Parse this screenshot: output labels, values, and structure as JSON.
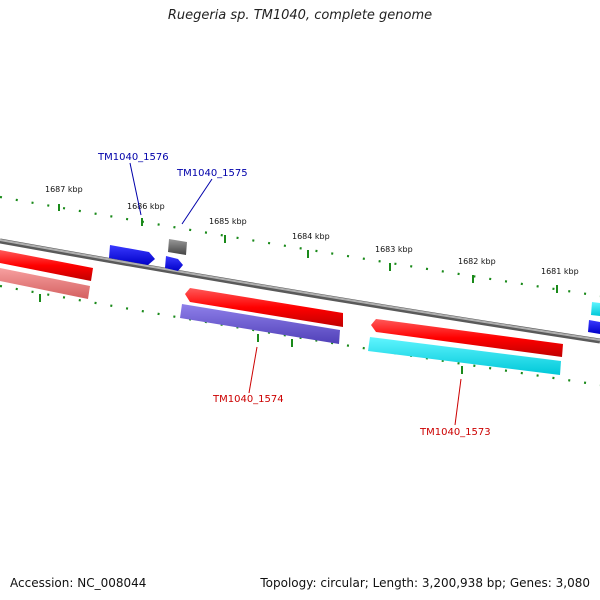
{
  "title": "Ruegeria sp. TM1040, complete genome",
  "footer": {
    "accession": "Accession: NC_008044",
    "summary": "Topology: circular; Length: 3,200,938 bp; Genes: 3,080"
  },
  "kbp_labels": [
    "1687 kbp",
    "1686 kbp",
    "1685 kbp",
    "1684 kbp",
    "1683 kbp",
    "1682 kbp",
    "1681 kbp"
  ],
  "gene_labels": {
    "g1576": "TM1040_1576",
    "g1575": "TM1040_1575",
    "g1574": "TM1040_1574",
    "g1573": "TM1040_1573"
  },
  "colors": {
    "gene_forward": "#ff0000",
    "gene_forward_light": "#f08080",
    "gene_blue": "#0000ee",
    "gene_purple": "#6a5acd",
    "gene_cyan": "#00e5ee",
    "gene_gray": "#666666",
    "backbone": "#8c8c8c",
    "tick": "#1a8a1a",
    "label_blue": "#0000aa",
    "label_red": "#cc0000"
  }
}
